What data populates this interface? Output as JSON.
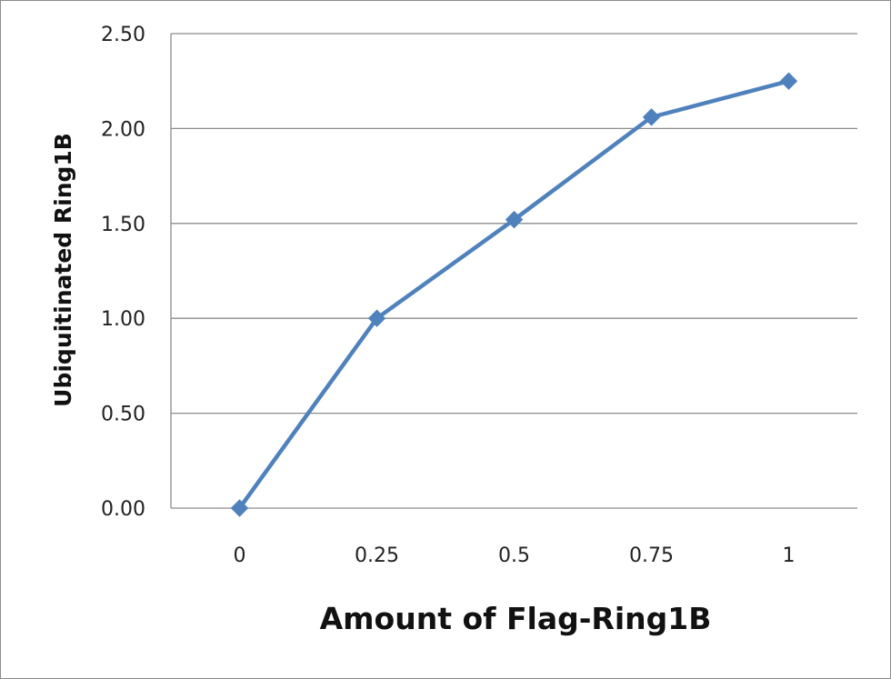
{
  "chart_data": {
    "type": "line",
    "title": "",
    "xlabel": "Amount of Flag-Ring1B",
    "ylabel": "Ubiquitinated Ring1B",
    "categories": [
      "0",
      "0.25",
      "0.5",
      "0.75",
      "1"
    ],
    "y_tick_labels": [
      "0.00",
      "0.50",
      "1.00",
      "1.50",
      "2.00",
      "2.50"
    ],
    "y_ticks": [
      0,
      0.5,
      1.0,
      1.5,
      2.0,
      2.5
    ],
    "ylim": [
      0,
      2.5
    ],
    "grid": true,
    "legend": "none",
    "series": [
      {
        "values": [
          0.0,
          1.0,
          1.52,
          2.06,
          2.25
        ],
        "color": "#4f81bd",
        "marker": "diamond"
      }
    ]
  }
}
